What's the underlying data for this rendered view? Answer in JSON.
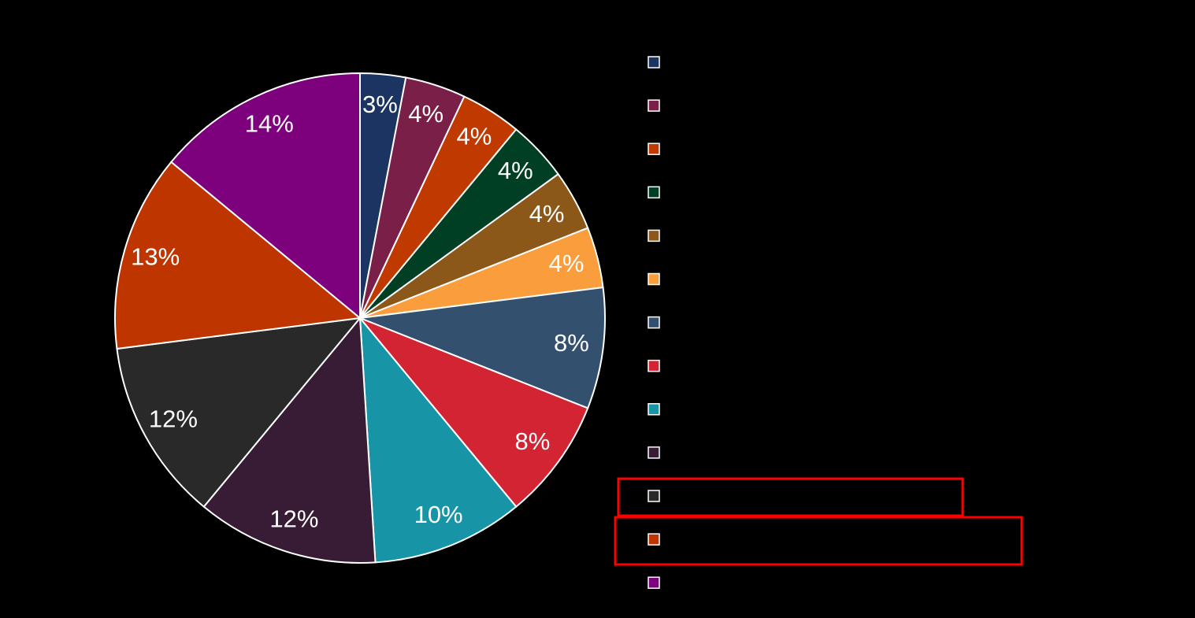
{
  "chart_data": {
    "type": "pie",
    "values": [
      3,
      4,
      4,
      4,
      4,
      4,
      8,
      8,
      10,
      12,
      12,
      13,
      14
    ],
    "value_labels": [
      "3%",
      "4%",
      "4%",
      "4%",
      "4%",
      "4%",
      "8%",
      "8%",
      "10%",
      "12%",
      "12%",
      "13%",
      "14%"
    ],
    "colors": [
      "#1c3461",
      "#7a2048",
      "#c03a00",
      "#003f24",
      "#8b5819",
      "#f99d3d",
      "#34506f",
      "#d32433",
      "#1795a7",
      "#381b34",
      "#292929",
      "#bf3500",
      "#7d007d"
    ]
  }
}
